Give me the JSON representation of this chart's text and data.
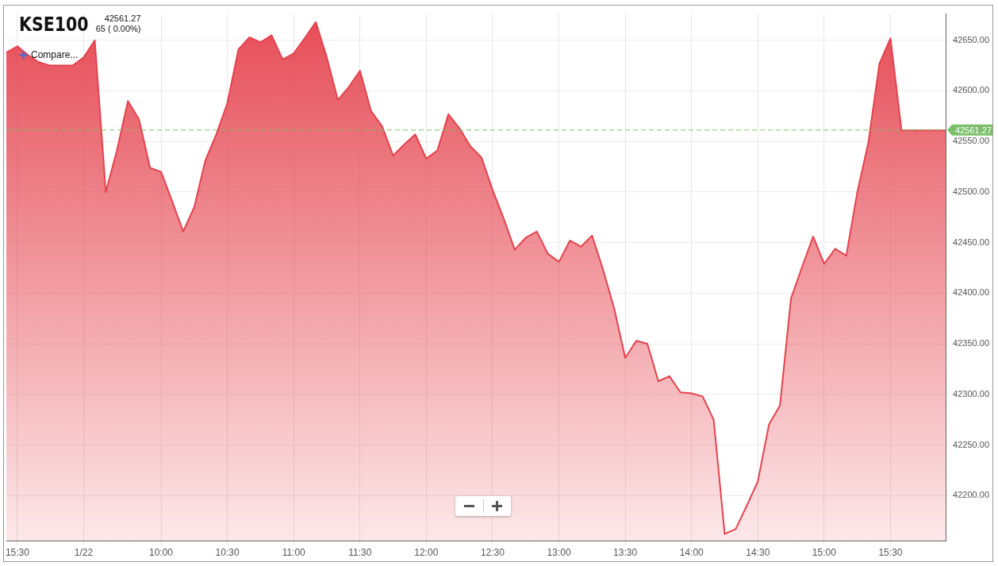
{
  "chart_data": {
    "type": "area",
    "title": "KSE100",
    "annotations": [
      "42561.27",
      "65 ( 0.00%)",
      "Compare..."
    ],
    "categories": [
      null,
      "15:30",
      null,
      null,
      null,
      null,
      null,
      "1/22",
      null,
      null,
      null,
      null,
      null,
      null,
      "10:00",
      null,
      null,
      null,
      null,
      null,
      "10:30",
      null,
      null,
      null,
      null,
      null,
      "11:00",
      null,
      null,
      null,
      null,
      null,
      "11:30",
      null,
      null,
      null,
      null,
      null,
      "12:00",
      null,
      null,
      null,
      null,
      null,
      "12:30",
      null,
      null,
      null,
      null,
      null,
      "13:00",
      null,
      null,
      null,
      null,
      null,
      "13:30",
      null,
      null,
      null,
      null,
      null,
      "14:00",
      null,
      null,
      null,
      null,
      null,
      "14:30",
      null,
      null,
      null,
      null,
      null,
      "15:00",
      null,
      null,
      null,
      null,
      null,
      "15:30",
      null,
      null,
      null,
      null,
      null
    ],
    "series": [
      {
        "color": "#e5424d",
        "values": [
          42638,
          42644,
          42635,
          42628,
          42625,
          42625,
          42625,
          42633,
          42650,
          42500,
          42541,
          42590,
          42572,
          42524,
          42520,
          42491,
          42461,
          42485,
          42531,
          42557,
          42588,
          42641,
          42653,
          42648,
          42655,
          42631,
          42637,
          42652,
          42668,
          42633,
          42591,
          42604,
          42620,
          42580,
          42565,
          42536,
          42547,
          42557,
          42533,
          42541,
          42577,
          42563,
          42545,
          42534,
          42502,
          42474,
          42443,
          42455,
          42461,
          42439,
          42431,
          42452,
          42446,
          42457,
          42423,
          42385,
          42336,
          42353,
          42350,
          42313,
          42318,
          42302,
          42301,
          42298,
          42275,
          42162,
          42167,
          42190,
          42214,
          42270,
          42289,
          42395,
          42426,
          42456,
          42429,
          42444,
          42437,
          42500,
          42549,
          42627,
          42652,
          42561,
          42561,
          42561,
          42561,
          42561
        ]
      }
    ],
    "ylim": [
      42155,
      42676
    ],
    "yticks": [
      {
        "value": 42200,
        "label": "42200.00"
      },
      {
        "value": 42250,
        "label": "42250.00"
      },
      {
        "value": 42300,
        "label": "42300.00"
      },
      {
        "value": 42350,
        "label": "42350.00"
      },
      {
        "value": 42400,
        "label": "42400.00"
      },
      {
        "value": 42450,
        "label": "42450.00"
      },
      {
        "value": 42500,
        "label": "42500.00"
      },
      {
        "value": 42550,
        "label": "42550.00"
      },
      {
        "value": 42600,
        "label": "42600.00"
      },
      {
        "value": 42650,
        "label": "42650.00"
      }
    ],
    "grid": true,
    "marker": "none",
    "ref_lines": [
      {
        "axis": "y",
        "value": 42561.27,
        "label": "42561.27",
        "color": "#7cbf6a",
        "line_style": "dashed"
      }
    ]
  }
}
